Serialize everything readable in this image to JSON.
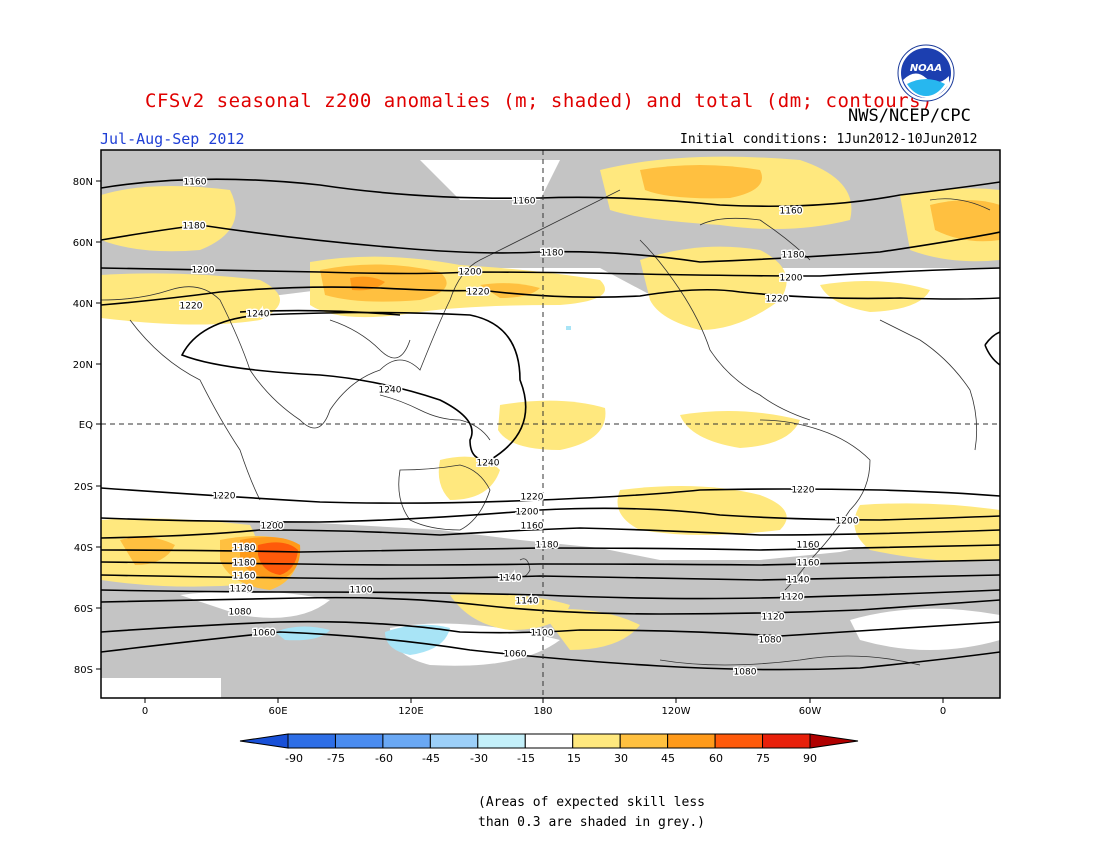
{
  "header": {
    "title": "CFSv2 seasonal z200 anomalies (m; shaded) and total (dm; contours)",
    "agency": "NWS/NCEP/CPC",
    "period": "Jul-Aug-Sep 2012",
    "initial_conditions": "Initial conditions: 1Jun2012-10Jun2012",
    "logo_text": "NOAA"
  },
  "map": {
    "lat_labels": [
      "80N",
      "60N",
      "40N",
      "20N",
      "EQ",
      "20S",
      "40S",
      "60S",
      "80S"
    ],
    "lon_labels": [
      "0",
      "60E",
      "120E",
      "180",
      "120W",
      "60W",
      "0"
    ],
    "contour_labels": [
      "1160",
      "1180",
      "1200",
      "1220",
      "1240",
      "1160",
      "1180",
      "1200",
      "1220",
      "1160",
      "1180",
      "1200",
      "1220",
      "1240",
      "1240",
      "1220",
      "1220",
      "1220",
      "1200",
      "1200",
      "1200",
      "1180",
      "1160",
      "1180",
      "1160",
      "1140",
      "1120",
      "1100",
      "1080",
      "1060",
      "1160",
      "1140",
      "1120",
      "1080",
      "1060",
      "1180",
      "1160",
      "1140",
      "1120",
      "1100",
      "1080",
      "1060"
    ]
  },
  "legend": {
    "labels": [
      "-90",
      "-75",
      "-60",
      "-45",
      "-30",
      "-15",
      "15",
      "30",
      "45",
      "60",
      "75",
      "90"
    ],
    "colors": [
      "#1850d8",
      "#2e6ee6",
      "#4a8cf0",
      "#6aa8f4",
      "#9ccff8",
      "#c4f0fa",
      "#ffffff",
      "#ffe87e",
      "#ffc040",
      "#ff9a1a",
      "#ff5a0a",
      "#e8200a",
      "#b00000"
    ]
  },
  "note": {
    "line1": "(Areas of expected skill less",
    "line2": "than 0.3 are shaded in grey.)"
  }
}
